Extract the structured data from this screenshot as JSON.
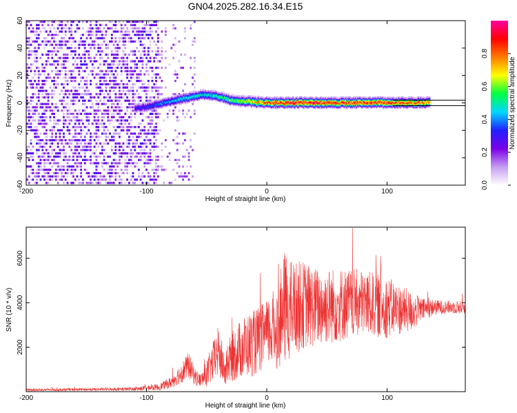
{
  "chart_data": [
    {
      "type": "heatmap",
      "title": "GN04.2025.282.16.34.E15",
      "xlabel": "Height of straight line (km)",
      "ylabel": "Frequency (Hz)",
      "xlim": [
        -200,
        165
      ],
      "ylim": [
        -60,
        60
      ],
      "xticks": [
        "-200",
        "-100",
        "0",
        "100"
      ],
      "yticks": [
        "-60",
        "-40",
        "-20",
        "0",
        "20",
        "40",
        "60"
      ],
      "colorbar": {
        "label": "Normalized spectral amplitude",
        "range": [
          0,
          1
        ],
        "ticks": [
          "0.0",
          "0.2",
          "0.4",
          "0.6",
          "0.8"
        ],
        "colors": [
          "#ffffff",
          "#c59cf2",
          "#7a00e6",
          "#2020ff",
          "#00d8ff",
          "#00ff40",
          "#ffff00",
          "#ff7a00",
          "#ff0000",
          "#ff00a0"
        ]
      },
      "reference_lines_hz": [
        2,
        -2
      ],
      "ridge": {
        "x": [
          -110,
          -100,
          -90,
          -80,
          -70,
          -60,
          -50,
          -40,
          -30,
          -20,
          0,
          20,
          40,
          60,
          80,
          100,
          120,
          135
        ],
        "freq_hz": [
          -4,
          -3,
          -1,
          1,
          3,
          5,
          6,
          4,
          2,
          1,
          0,
          0,
          0,
          0,
          0,
          0,
          0,
          0
        ],
        "amplitude": [
          0.3,
          0.35,
          0.4,
          0.45,
          0.5,
          0.5,
          0.5,
          0.55,
          0.6,
          0.7,
          0.85,
          0.95,
          0.95,
          0.9,
          0.9,
          0.9,
          0.85,
          0.8
        ]
      },
      "noise_region": {
        "dense_x": [
          -200,
          -90
        ],
        "sparse_x": [
          -90,
          -60
        ],
        "amplitude_range": [
          0.05,
          0.3
        ]
      }
    },
    {
      "type": "line",
      "title": "",
      "xlabel": "Height of straight line (km)",
      "ylabel": "SNR (10 * v/v)",
      "xlim": [
        -200,
        165
      ],
      "ylim": [
        0,
        7400
      ],
      "xticks": [
        "-200",
        "-100",
        "0",
        "100"
      ],
      "yticks": [
        "2000",
        "4000",
        "6000"
      ],
      "color": "#ee3333",
      "envelope": {
        "x": [
          -200,
          -150,
          -110,
          -90,
          -80,
          -70,
          -65,
          -60,
          -55,
          -50,
          -40,
          -35,
          -30,
          -20,
          -10,
          0,
          10,
          15,
          20,
          30,
          40,
          60,
          80,
          100,
          120,
          130,
          140,
          150,
          165
        ],
        "mean": [
          80,
          100,
          120,
          200,
          400,
          900,
          1200,
          700,
          500,
          800,
          1800,
          900,
          1500,
          2000,
          2200,
          2600,
          3000,
          3800,
          3700,
          3900,
          3800,
          3900,
          4000,
          3800,
          3600,
          3700,
          3800,
          3800,
          3800
        ],
        "spread": [
          60,
          60,
          80,
          150,
          250,
          500,
          600,
          400,
          300,
          600,
          1200,
          700,
          1100,
          1400,
          1500,
          1500,
          2000,
          2600,
          2200,
          2000,
          1800,
          1700,
          1500,
          1400,
          900,
          500,
          350,
          300,
          300
        ]
      }
    }
  ]
}
